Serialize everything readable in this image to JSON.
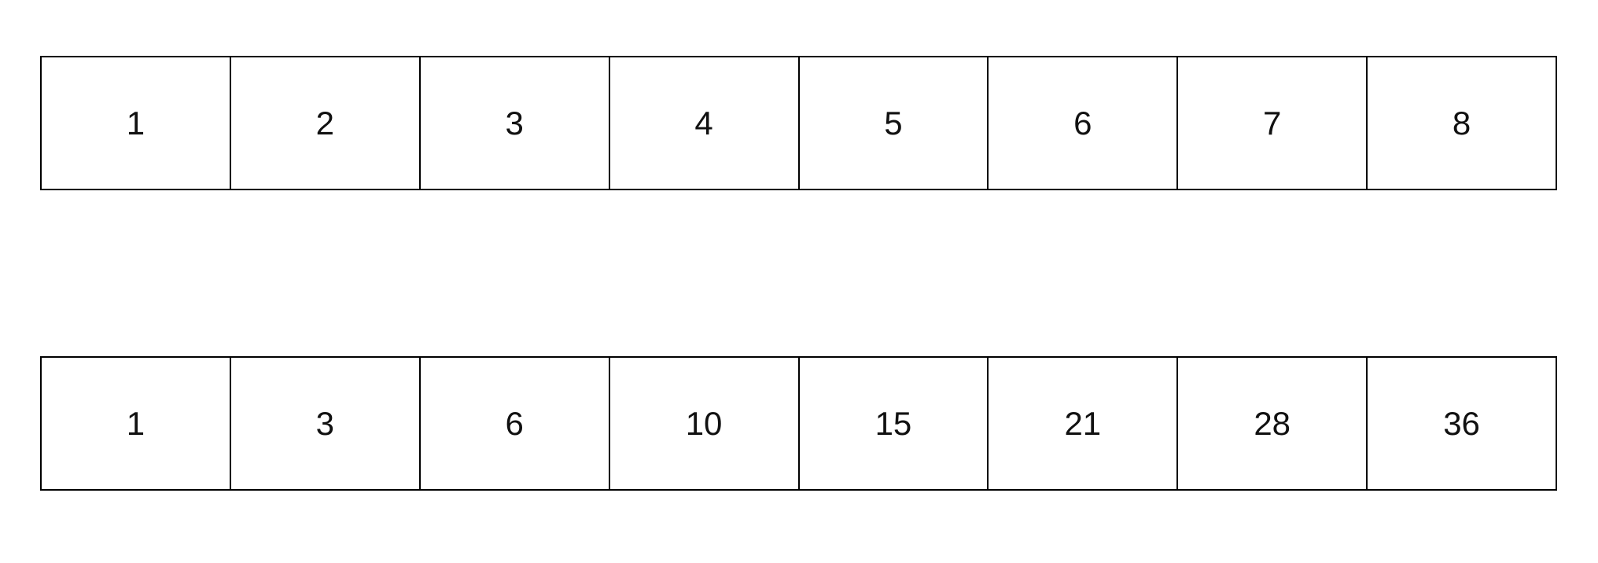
{
  "colors": {
    "background": "#ffffff",
    "border": "#000000",
    "text": "#111111"
  },
  "top_row": {
    "cells": [
      "1",
      "2",
      "3",
      "4",
      "5",
      "6",
      "7",
      "8"
    ]
  },
  "bottom_row": {
    "cells": [
      "1",
      "3",
      "6",
      "10",
      "15",
      "21",
      "28",
      "36"
    ]
  }
}
